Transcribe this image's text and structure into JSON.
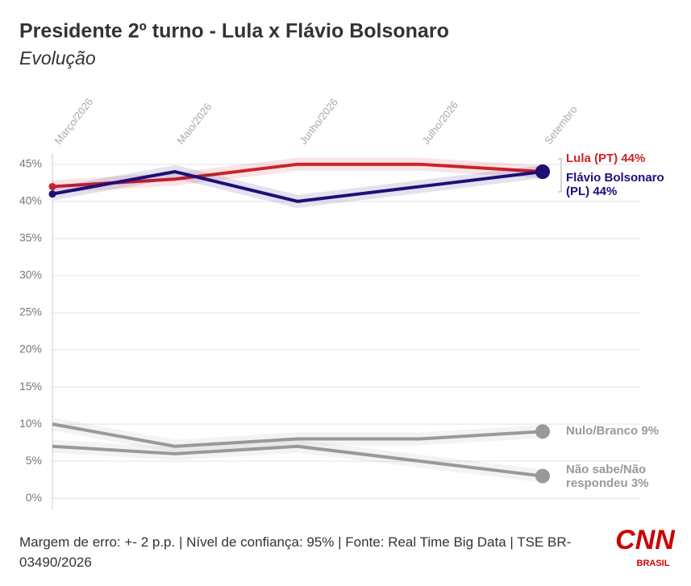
{
  "chart_data": {
    "type": "line",
    "title": "Presidente 2º turno - Lula x Flávio Bolsonaro",
    "subtitle": "Evolução",
    "categories": [
      "Março/2026",
      "Maio/2026",
      "Junho/2026",
      "Julho/2026",
      "Setembro"
    ],
    "series": [
      {
        "name": [
          "Lula (PT) 44%"
        ],
        "color": "#cc2229",
        "values": [
          42,
          43,
          45,
          45,
          44
        ]
      },
      {
        "name": [
          "Flávio Bolsonaro",
          "(PL) 44%"
        ],
        "color": "#1d0f78",
        "values": [
          41,
          44,
          40,
          42,
          44
        ]
      },
      {
        "name": [
          "Nulo/Branco 9%"
        ],
        "color": "#999999",
        "values": [
          10,
          7,
          8,
          8,
          9
        ]
      },
      {
        "name": [
          "Não sabe/Não",
          "respondeu 3%"
        ],
        "color": "#999999",
        "values": [
          7,
          6,
          7,
          5,
          3
        ]
      }
    ],
    "ylim": [
      -1.5,
      46.5
    ],
    "yticks": [
      {
        "value": 0,
        "label": "0%"
      },
      {
        "value": 5,
        "label": "5%"
      },
      {
        "value": 10,
        "label": "10%"
      },
      {
        "value": 15,
        "label": "15%"
      },
      {
        "value": 20,
        "label": "20%"
      },
      {
        "value": 25,
        "label": "25%"
      },
      {
        "value": 30,
        "label": "30%"
      },
      {
        "value": 35,
        "label": "35%"
      },
      {
        "value": 40,
        "label": "40%"
      },
      {
        "value": 45,
        "label": "45%"
      }
    ],
    "grid": true,
    "footer": "Margem de erro: +- 2 p.p. | Nível de confiança: 95% | Fonte: Real Time Big Data | TSE BR-03490/2026",
    "logo": {
      "main": "CNN",
      "sub": "BRASIL"
    }
  }
}
